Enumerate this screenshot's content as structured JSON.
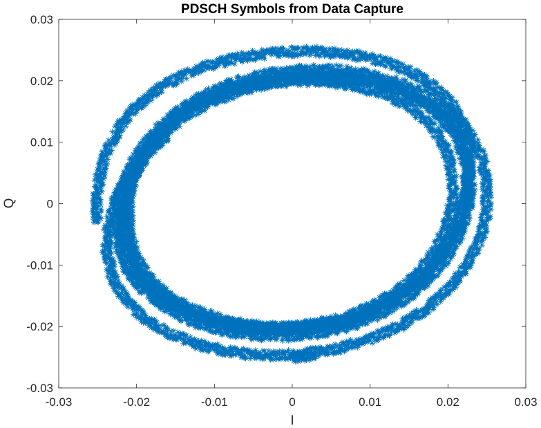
{
  "chart_data": {
    "type": "scatter",
    "title": "PDSCH Symbols from Data Capture",
    "xlabel": "I",
    "ylabel": "Q",
    "xlim": [
      -0.03,
      0.03
    ],
    "ylim": [
      -0.03,
      0.03
    ],
    "xticks": [
      -0.03,
      -0.02,
      -0.01,
      0,
      0.01,
      0.02,
      0.03
    ],
    "yticks": [
      -0.03,
      -0.02,
      -0.01,
      0,
      0.01,
      0.02,
      0.03
    ],
    "xtick_labels": [
      "-0.03",
      "-0.02",
      "-0.01",
      "0",
      "0.01",
      "0.02",
      "0.03"
    ],
    "ytick_labels": [
      "-0.03",
      "-0.02",
      "-0.01",
      "0",
      "0.01",
      "0.02",
      "0.03"
    ],
    "grid": false,
    "marker": "*",
    "color": "#0072BD",
    "series": [
      {
        "description_points": "spiral of constellation symbols, sampled points (I, Q)",
        "points": [
          [
            -0.025,
            -0.003
          ],
          [
            -0.0252,
            0.0
          ],
          [
            -0.0248,
            0.004
          ],
          [
            -0.0238,
            0.0085
          ],
          [
            -0.0222,
            0.0125
          ],
          [
            -0.02,
            0.0158
          ],
          [
            -0.0172,
            0.0187
          ],
          [
            -0.0138,
            0.021
          ],
          [
            -0.01,
            0.0228
          ],
          [
            -0.0058,
            0.024
          ],
          [
            -0.0015,
            0.0247
          ],
          [
            0.003,
            0.0248
          ],
          [
            0.0075,
            0.0243
          ],
          [
            0.0118,
            0.0232
          ],
          [
            0.0155,
            0.0213
          ],
          [
            0.0185,
            0.0188
          ],
          [
            0.0208,
            0.0158
          ],
          [
            0.0222,
            0.0122
          ],
          [
            0.0228,
            0.008
          ],
          [
            0.0226,
            0.0035
          ],
          [
            0.0218,
            -0.001
          ],
          [
            0.0205,
            -0.0052
          ],
          [
            0.0186,
            -0.0092
          ],
          [
            0.016,
            -0.0127
          ],
          [
            0.0128,
            -0.0158
          ],
          [
            0.009,
            -0.0182
          ],
          [
            0.0048,
            -0.0196
          ],
          [
            0.0003,
            -0.0202
          ],
          [
            -0.0043,
            -0.02
          ],
          [
            -0.0087,
            -0.019
          ],
          [
            -0.0127,
            -0.0173
          ],
          [
            -0.016,
            -0.015
          ],
          [
            -0.0185,
            -0.012
          ],
          [
            -0.0202,
            -0.0085
          ],
          [
            -0.021,
            -0.0045
          ],
          [
            -0.0211,
            -0.0002
          ],
          [
            -0.0205,
            0.004
          ],
          [
            -0.0192,
            0.008
          ],
          [
            -0.0172,
            0.0115
          ],
          [
            -0.0146,
            0.0145
          ],
          [
            -0.0114,
            0.0168
          ],
          [
            -0.0077,
            0.0185
          ],
          [
            -0.0037,
            0.0195
          ],
          [
            0.0005,
            0.02
          ],
          [
            0.0047,
            0.0198
          ],
          [
            0.0088,
            0.019
          ],
          [
            0.0125,
            0.0175
          ],
          [
            0.0157,
            0.0152
          ],
          [
            0.0182,
            0.0122
          ],
          [
            0.0198,
            0.0087
          ],
          [
            0.0206,
            0.0047
          ],
          [
            0.0206,
            0.0005
          ],
          [
            0.0198,
            -0.0038
          ],
          [
            0.0183,
            -0.0078
          ],
          [
            0.0162,
            -0.0113
          ],
          [
            0.0135,
            -0.0143
          ],
          [
            0.0103,
            -0.0167
          ],
          [
            0.0066,
            -0.0185
          ],
          [
            0.0026,
            -0.0197
          ],
          [
            -0.0016,
            -0.0202
          ],
          [
            -0.0058,
            -0.02
          ],
          [
            -0.0098,
            -0.0191
          ],
          [
            -0.0134,
            -0.0176
          ],
          [
            -0.0164,
            -0.0154
          ],
          [
            -0.0187,
            -0.0126
          ],
          [
            -0.0203,
            -0.0092
          ],
          [
            -0.0212,
            -0.0054
          ],
          [
            -0.0214,
            -0.0013
          ],
          [
            -0.0209,
            0.0028
          ],
          [
            -0.0197,
            0.0068
          ],
          [
            -0.0179,
            0.0103
          ],
          [
            -0.0156,
            0.0134
          ],
          [
            -0.0128,
            0.016
          ],
          [
            -0.0095,
            0.0181
          ],
          [
            -0.0058,
            0.0196
          ],
          [
            -0.0018,
            0.0206
          ],
          [
            0.0023,
            0.021
          ],
          [
            0.0064,
            0.0208
          ],
          [
            0.0104,
            0.02
          ],
          [
            0.014,
            0.0186
          ],
          [
            0.0172,
            0.0165
          ],
          [
            0.0198,
            0.0138
          ],
          [
            0.0216,
            0.0106
          ],
          [
            0.0226,
            0.0068
          ],
          [
            0.0229,
            0.0028
          ],
          [
            0.0225,
            -0.0013
          ],
          [
            0.0214,
            -0.0053
          ],
          [
            0.0197,
            -0.0091
          ],
          [
            0.0174,
            -0.0125
          ],
          [
            0.0146,
            -0.0155
          ],
          [
            0.0113,
            -0.018
          ],
          [
            0.0076,
            -0.0199
          ],
          [
            0.0036,
            -0.0211
          ],
          [
            -0.0005,
            -0.0216
          ],
          [
            -0.0047,
            -0.0215
          ],
          [
            -0.0088,
            -0.0207
          ],
          [
            -0.0126,
            -0.0193
          ],
          [
            -0.016,
            -0.0172
          ],
          [
            -0.0188,
            -0.0146
          ],
          [
            -0.0209,
            -0.0114
          ],
          [
            -0.0221,
            -0.0077
          ],
          [
            -0.0226,
            -0.0036
          ],
          [
            -0.0223,
            0.0006
          ],
          [
            -0.0213,
            0.0047
          ],
          [
            -0.0196,
            0.0086
          ],
          [
            -0.0173,
            0.0121
          ],
          [
            -0.0145,
            0.0152
          ],
          [
            -0.0111,
            0.0178
          ],
          [
            -0.0073,
            0.0198
          ],
          [
            -0.0032,
            0.0211
          ],
          [
            0.0012,
            0.0218
          ],
          [
            0.0056,
            0.0218
          ],
          [
            0.0098,
            0.0211
          ],
          [
            0.0138,
            0.0197
          ],
          [
            0.0173,
            0.0176
          ],
          [
            0.0203,
            0.0149
          ],
          [
            0.0227,
            0.0116
          ],
          [
            0.0243,
            0.0077
          ],
          [
            0.025,
            0.0033
          ],
          [
            0.025,
            -0.0012
          ],
          [
            0.0242,
            -0.0056
          ],
          [
            0.0226,
            -0.0098
          ],
          [
            0.0203,
            -0.0136
          ],
          [
            0.0174,
            -0.017
          ],
          [
            0.014,
            -0.0198
          ],
          [
            0.0101,
            -0.022
          ],
          [
            0.0058,
            -0.0236
          ],
          [
            0.0013,
            -0.0245
          ],
          [
            -0.0032,
            -0.0247
          ],
          [
            -0.0077,
            -0.0242
          ],
          [
            -0.012,
            -0.023
          ],
          [
            -0.0158,
            -0.0212
          ],
          [
            -0.019,
            -0.0187
          ],
          [
            -0.0215,
            -0.0156
          ],
          [
            -0.0231,
            -0.012
          ],
          [
            -0.0238,
            -0.008
          ],
          [
            -0.0236,
            -0.0037
          ],
          [
            -0.0227,
            0.0006
          ],
          [
            -0.0211,
            0.0047
          ],
          [
            -0.019,
            0.0084
          ],
          [
            -0.0164,
            0.0117
          ],
          [
            -0.0134,
            0.0145
          ],
          [
            -0.01,
            0.0168
          ],
          [
            -0.0062,
            0.0186
          ],
          [
            -0.0022,
            0.0198
          ],
          [
            0.002,
            0.0204
          ],
          [
            0.0062,
            0.0204
          ],
          [
            0.0102,
            0.0197
          ],
          [
            0.0138,
            0.0184
          ],
          [
            0.0169,
            0.0164
          ],
          [
            0.0194,
            0.0138
          ],
          [
            0.0212,
            0.0107
          ],
          [
            0.0222,
            0.0071
          ],
          [
            0.0225,
            0.0032
          ],
          [
            0.022,
            -0.0008
          ],
          [
            0.0209,
            -0.0047
          ],
          [
            0.0191,
            -0.0085
          ],
          [
            0.0168,
            -0.0119
          ],
          [
            0.014,
            -0.0148
          ],
          [
            0.0107,
            -0.0172
          ],
          [
            0.007,
            -0.019
          ],
          [
            0.003,
            -0.0202
          ],
          [
            -0.0012,
            -0.0206
          ],
          [
            -0.0054,
            -0.0204
          ],
          [
            -0.0094,
            -0.0196
          ],
          [
            -0.0131,
            -0.0181
          ],
          [
            -0.0163,
            -0.016
          ],
          [
            -0.0189,
            -0.0134
          ],
          [
            -0.0207,
            -0.0102
          ],
          [
            -0.0217,
            -0.0066
          ],
          [
            -0.022,
            -0.0027
          ],
          [
            -0.0215,
            0.0012
          ],
          [
            -0.0202,
            0.005
          ],
          [
            -0.0183,
            0.0085
          ],
          [
            -0.0158,
            0.0115
          ],
          [
            0.0,
            -0.025
          ],
          [
            0.003,
            -0.0249
          ],
          [
            -0.003,
            -0.0249
          ],
          [
            0.003,
            0.025
          ],
          [
            -0.004,
            0.0245
          ]
        ]
      }
    ]
  }
}
